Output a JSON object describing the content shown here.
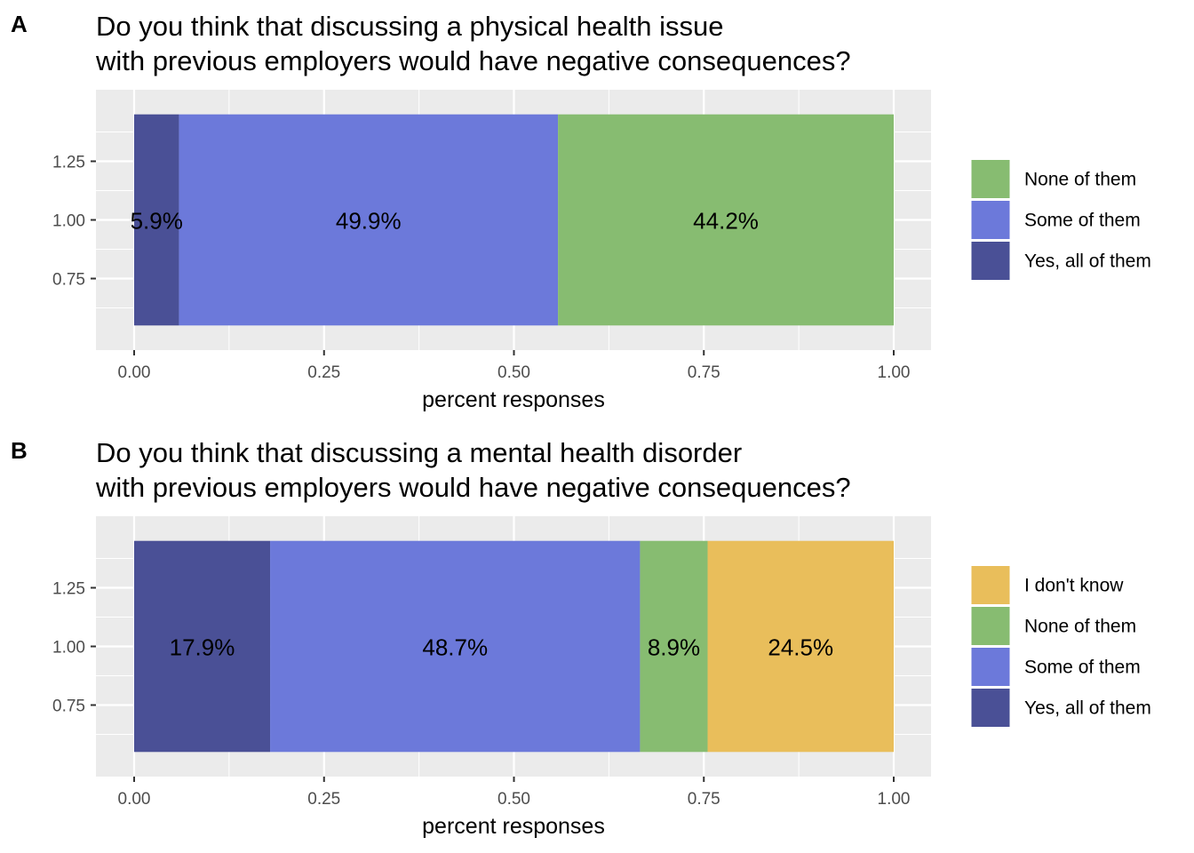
{
  "chart_data": [
    {
      "type": "bar",
      "orientation": "horizontal-stacked",
      "panel_tag": "A",
      "title_lines": [
        "Do you think that discussing a physical health issue",
        "with previous employers would have negative consequences?"
      ],
      "xlabel": "percent responses",
      "ylabel": "",
      "xlim": [
        0,
        1
      ],
      "ylim": [
        0.5,
        1.5
      ],
      "x_ticks": [
        "0.00",
        "0.25",
        "0.50",
        "0.75",
        "1.00"
      ],
      "y_ticks": [
        "0.75",
        "1.00",
        "1.25"
      ],
      "grid": true,
      "legend_position": "right",
      "categories": [
        "1.00"
      ],
      "series": [
        {
          "name": "Yes, all of them",
          "value": 0.059,
          "label": "5.9%",
          "color": "#4A5096"
        },
        {
          "name": "Some of them",
          "value": 0.499,
          "label": "49.9%",
          "color": "#6C79DA"
        },
        {
          "name": "None of them",
          "value": 0.442,
          "label": "44.2%",
          "color": "#87BC71"
        }
      ],
      "legend": [
        {
          "name": "None of them",
          "color": "#87BC71"
        },
        {
          "name": "Some of them",
          "color": "#6C79DA"
        },
        {
          "name": "Yes, all of them",
          "color": "#4A5096"
        }
      ]
    },
    {
      "type": "bar",
      "orientation": "horizontal-stacked",
      "panel_tag": "B",
      "title_lines": [
        "Do you think that discussing a mental health disorder",
        "with previous employers would have negative consequences?"
      ],
      "xlabel": "percent responses",
      "ylabel": "",
      "xlim": [
        0,
        1
      ],
      "ylim": [
        0.5,
        1.5
      ],
      "x_ticks": [
        "0.00",
        "0.25",
        "0.50",
        "0.75",
        "1.00"
      ],
      "y_ticks": [
        "0.75",
        "1.00",
        "1.25"
      ],
      "grid": true,
      "legend_position": "right",
      "categories": [
        "1.00"
      ],
      "series": [
        {
          "name": "Yes, all of them",
          "value": 0.179,
          "label": "17.9%",
          "color": "#4A5096"
        },
        {
          "name": "Some of them",
          "value": 0.487,
          "label": "48.7%",
          "color": "#6C79DA"
        },
        {
          "name": "None of them",
          "value": 0.089,
          "label": "8.9%",
          "color": "#87BC71"
        },
        {
          "name": "I don't know",
          "value": 0.245,
          "label": "24.5%",
          "color": "#E9BE5B"
        }
      ],
      "legend": [
        {
          "name": "I don't know",
          "color": "#E9BE5B"
        },
        {
          "name": "None of them",
          "color": "#87BC71"
        },
        {
          "name": "Some of them",
          "color": "#6C79DA"
        },
        {
          "name": "Yes, all of them",
          "color": "#4A5096"
        }
      ]
    }
  ]
}
